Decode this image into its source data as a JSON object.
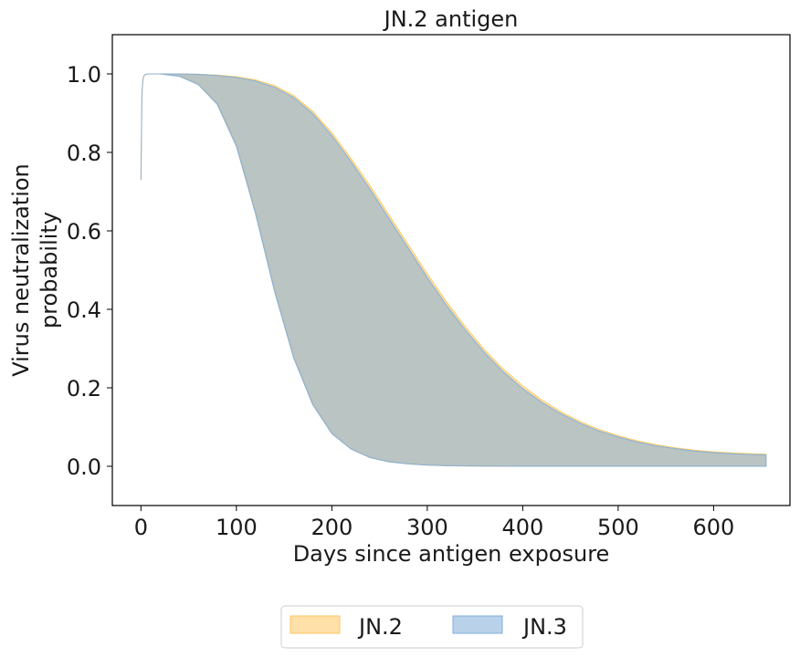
{
  "chart_data": {
    "type": "area",
    "title": "JN.2 antigen",
    "xlabel": "Days since antigen exposure",
    "ylabel_lines": [
      "Virus neutralization",
      "probability"
    ],
    "xlim": [
      -30,
      680
    ],
    "ylim": [
      -0.1,
      1.1
    ],
    "x_ticks": [
      0,
      100,
      200,
      300,
      400,
      500,
      600
    ],
    "y_ticks": [
      0.0,
      0.2,
      0.4,
      0.6,
      0.8,
      1.0
    ],
    "x_tick_labels": [
      "0",
      "100",
      "200",
      "300",
      "400",
      "500",
      "600"
    ],
    "y_tick_labels": [
      "0.0",
      "0.2",
      "0.4",
      "0.6",
      "0.8",
      "1.0"
    ],
    "legend_position": "bottom-center",
    "series": [
      {
        "name": "JN.2",
        "color": "#fdc660",
        "opacity": 0.55,
        "x": [
          0,
          1,
          2,
          3,
          5,
          8,
          12,
          20,
          40,
          60,
          80,
          100,
          120,
          140,
          160,
          180,
          200,
          220,
          240,
          260,
          280,
          300,
          320,
          340,
          360,
          380,
          400,
          420,
          440,
          460,
          480,
          500,
          520,
          540,
          560,
          580,
          600,
          620,
          640,
          655
        ],
        "upper": [
          0.73,
          0.95,
          0.985,
          0.995,
          0.999,
          1.0,
          1.0,
          1.0,
          1.0,
          0.999,
          0.997,
          0.993,
          0.985,
          0.97,
          0.945,
          0.905,
          0.85,
          0.785,
          0.715,
          0.64,
          0.565,
          0.49,
          0.42,
          0.355,
          0.297,
          0.247,
          0.205,
          0.169,
          0.139,
          0.114,
          0.094,
          0.078,
          0.065,
          0.055,
          0.047,
          0.041,
          0.037,
          0.034,
          0.032,
          0.031
        ],
        "lower": [
          0.73,
          0.95,
          0.985,
          0.995,
          0.999,
          1.0,
          1.0,
          1.0,
          0.995,
          0.975,
          0.925,
          0.82,
          0.65,
          0.45,
          0.28,
          0.16,
          0.085,
          0.045,
          0.023,
          0.012,
          0.006,
          0.003,
          0.0015,
          0.0008,
          0.0004,
          0.0002,
          0.0001,
          0.0,
          0.0,
          0.0,
          0.0,
          0.0,
          0.0,
          0.0,
          0.0,
          0.0,
          0.0,
          0.0,
          0.0,
          0.0
        ]
      },
      {
        "name": "JN.3",
        "color": "#7fadd9",
        "opacity": 0.55,
        "x": [
          0,
          1,
          2,
          3,
          5,
          8,
          12,
          20,
          40,
          60,
          80,
          100,
          120,
          140,
          160,
          180,
          200,
          220,
          240,
          260,
          280,
          300,
          320,
          340,
          360,
          380,
          400,
          420,
          440,
          460,
          480,
          500,
          520,
          540,
          560,
          580,
          600,
          620,
          640,
          655
        ],
        "upper": [
          0.73,
          0.95,
          0.985,
          0.995,
          0.999,
          1.0,
          1.0,
          1.0,
          1.0,
          0.999,
          0.996,
          0.991,
          0.982,
          0.966,
          0.94,
          0.899,
          0.843,
          0.777,
          0.706,
          0.631,
          0.556,
          0.481,
          0.411,
          0.347,
          0.29,
          0.24,
          0.198,
          0.163,
          0.134,
          0.11,
          0.09,
          0.075,
          0.062,
          0.052,
          0.045,
          0.039,
          0.035,
          0.032,
          0.03,
          0.029
        ],
        "lower": [
          0.73,
          0.95,
          0.985,
          0.995,
          0.999,
          1.0,
          1.0,
          1.0,
          0.994,
          0.973,
          0.922,
          0.815,
          0.644,
          0.445,
          0.276,
          0.157,
          0.083,
          0.044,
          0.022,
          0.011,
          0.006,
          0.003,
          0.0015,
          0.0008,
          0.0004,
          0.0002,
          0.0001,
          0.0,
          0.0,
          0.0,
          0.0,
          0.0,
          0.0,
          0.0,
          0.0,
          0.0,
          0.0,
          0.0,
          0.0,
          0.0
        ]
      }
    ]
  }
}
